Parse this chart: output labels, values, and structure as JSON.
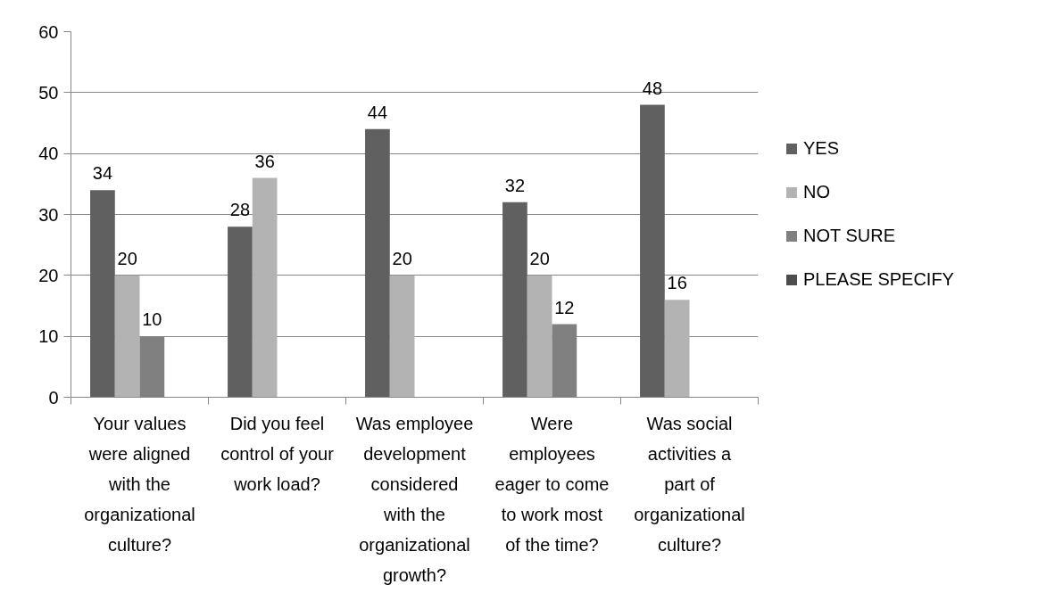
{
  "chart_data": {
    "type": "bar",
    "categories": [
      "Your values were aligned with the organizational culture?",
      "Did you feel control of your work load?",
      "Was employee development considered with the organizational growth?",
      "Were employees eager to come to work most of the time?",
      "Was social activities a part of organizational culture?"
    ],
    "series": [
      {
        "name": "YES",
        "color": "#606060",
        "values": [
          34,
          28,
          44,
          32,
          48
        ]
      },
      {
        "name": "NO",
        "color": "#b3b3b3",
        "values": [
          20,
          36,
          20,
          20,
          16
        ]
      },
      {
        "name": "NOT SURE",
        "color": "#808080",
        "values": [
          10,
          null,
          null,
          12,
          null
        ]
      },
      {
        "name": "PLEASE SPECIFY",
        "color": "#4d4d4d",
        "values": [
          null,
          null,
          null,
          null,
          null
        ]
      }
    ],
    "ylim": [
      0,
      60
    ],
    "yticks": [
      0,
      10,
      20,
      30,
      40,
      50,
      60
    ],
    "grid": "y",
    "legend": "right",
    "data_labels": true
  }
}
